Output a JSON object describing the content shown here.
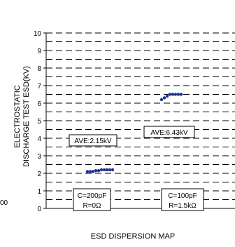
{
  "chart_data": {
    "type": "scatter",
    "title": "",
    "ylabel_line1": "ELECTROSTATIC",
    "ylabel_line2": "DISCHARGE TEST ESD(KV)",
    "xlabel": "ESD DISPERSION MAP",
    "ylim": [
      0,
      10
    ],
    "yticks": [
      "0",
      "1",
      "2",
      "3",
      "4",
      "5",
      "6",
      "7",
      "8",
      "9",
      "10"
    ],
    "grid": true,
    "side_label": "00",
    "marker_color": "#1f2f8f",
    "groups": [
      {
        "avg_label": "AVE:2.15kV",
        "condition_line1": "C=200pF",
        "condition_line2": "R=0Ω",
        "values": [
          2.1,
          2.1,
          2.1,
          2.15,
          2.15,
          2.2,
          2.2,
          2.2,
          2.2,
          2.2
        ]
      },
      {
        "avg_label": "AVE:6.43kV",
        "condition_line1": "C=100pF",
        "condition_line2": "R=1.5kΩ",
        "values": [
          6.2,
          6.3,
          6.4,
          6.5,
          6.5,
          6.5,
          6.5,
          6.5
        ]
      }
    ]
  }
}
